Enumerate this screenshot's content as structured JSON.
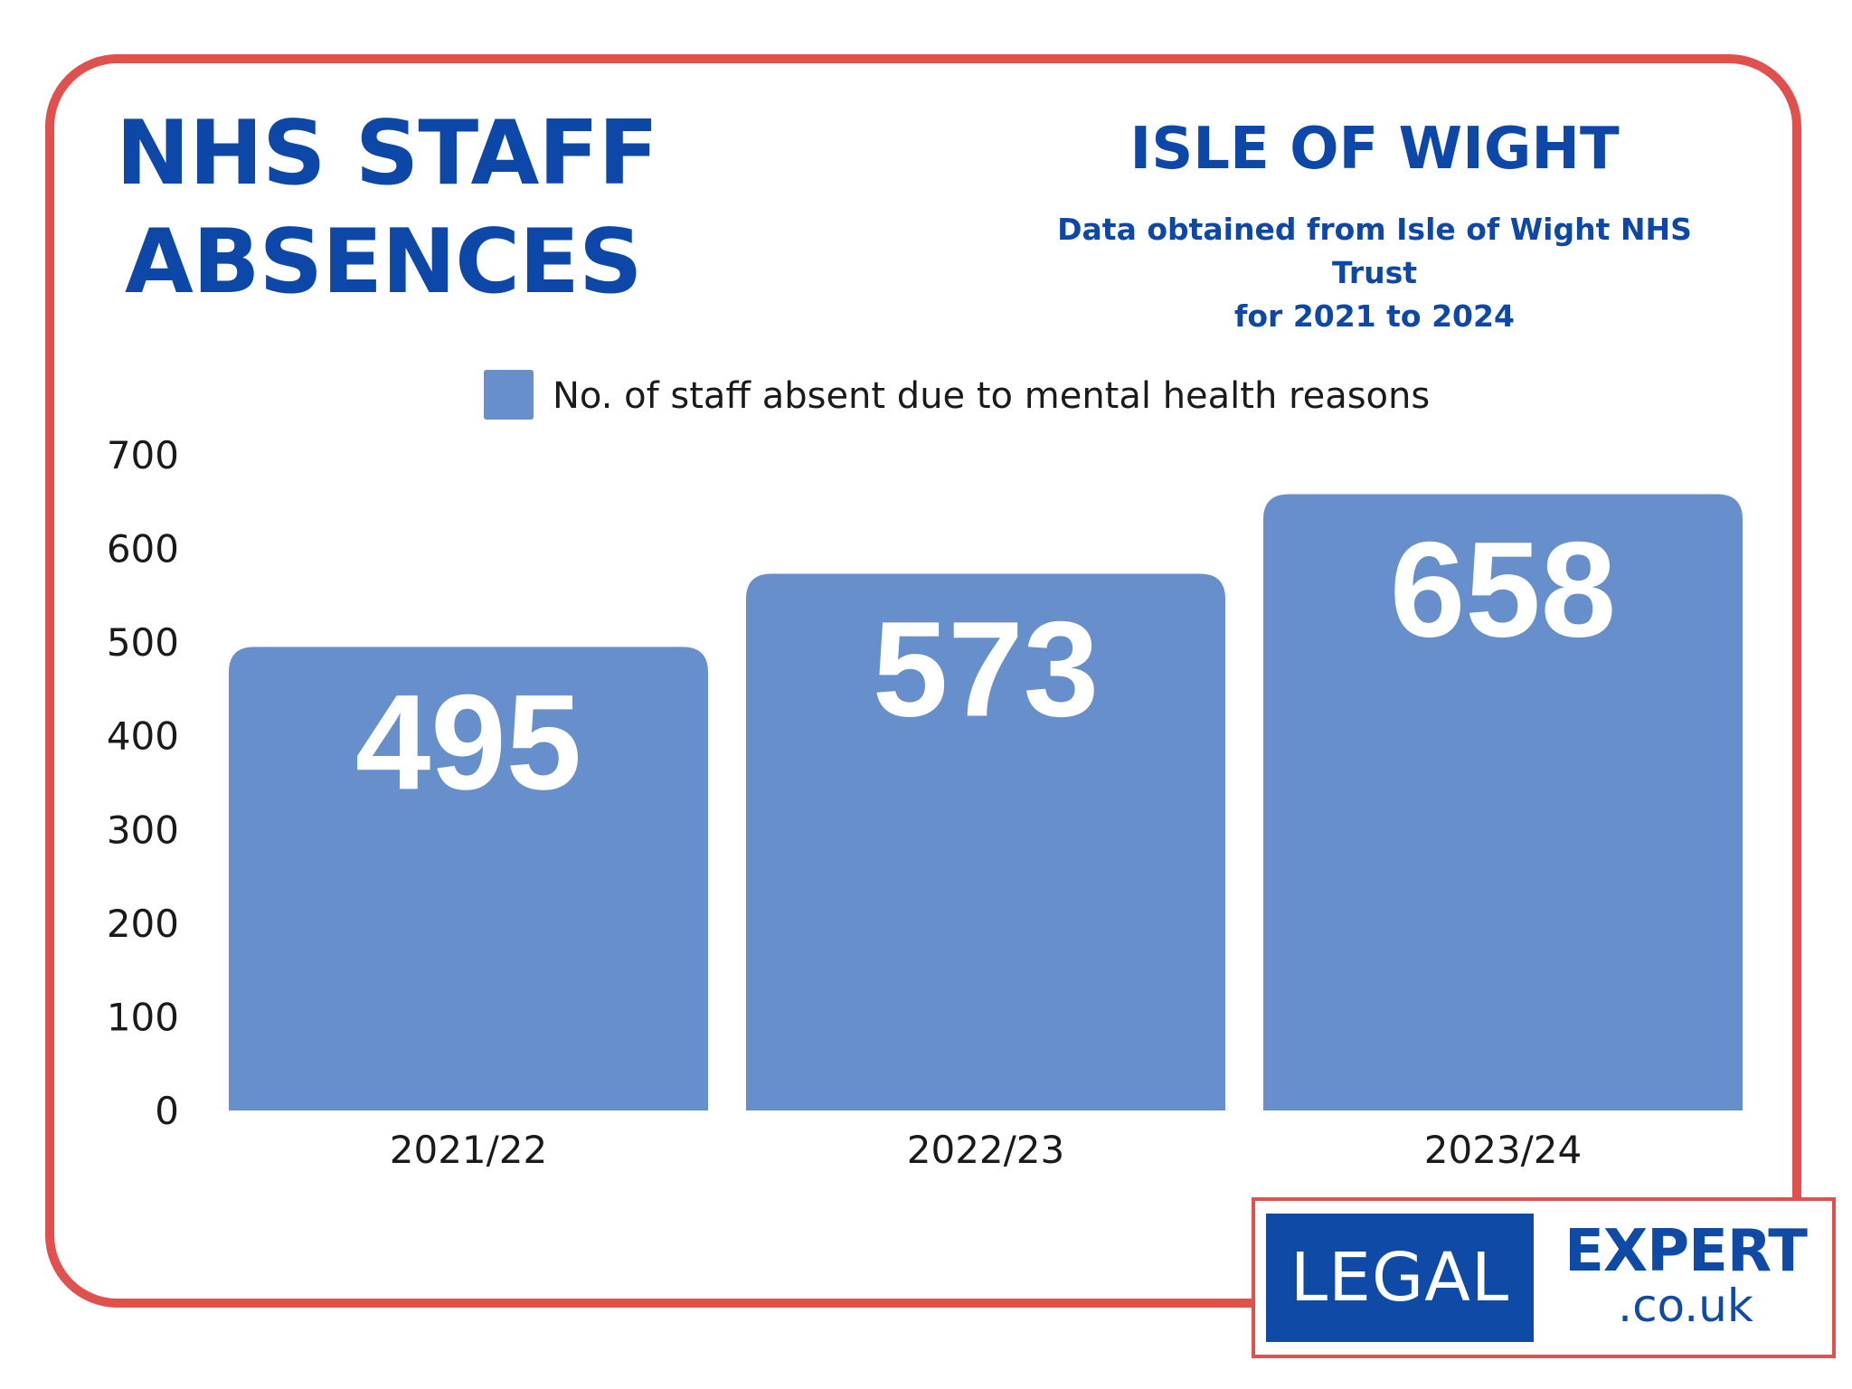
{
  "header": {
    "title_line1": "NHS STAFF",
    "title_line2": "ABSENCES",
    "region": "ISLE OF WIGHT",
    "source_line1": "Data obtained from Isle of Wight NHS Trust",
    "source_line2": "for 2021 to 2024"
  },
  "colors": {
    "frame": "#e0504d",
    "title": "#0d47a8",
    "bar": "#668fcb",
    "bar_label": "#ffffff",
    "axis_text": "#1a1a1a",
    "logo_blue": "#0f4aa6"
  },
  "chart_data": {
    "type": "bar",
    "categories": [
      "2021/22",
      "2022/23",
      "2023/24"
    ],
    "series": [
      {
        "name": "No. of staff absent due to mental health reasons",
        "values": [
          495,
          573,
          658
        ]
      }
    ],
    "data_labels": [
      "495",
      "573",
      "658"
    ],
    "ylim": [
      0,
      700
    ],
    "yticks": [
      0,
      100,
      200,
      300,
      400,
      500,
      600,
      700
    ],
    "grid": false,
    "legend_position": "top"
  },
  "logo": {
    "left_text": "LEGAL",
    "right_text": "EXPERT",
    "domain_text": ".co.uk"
  }
}
